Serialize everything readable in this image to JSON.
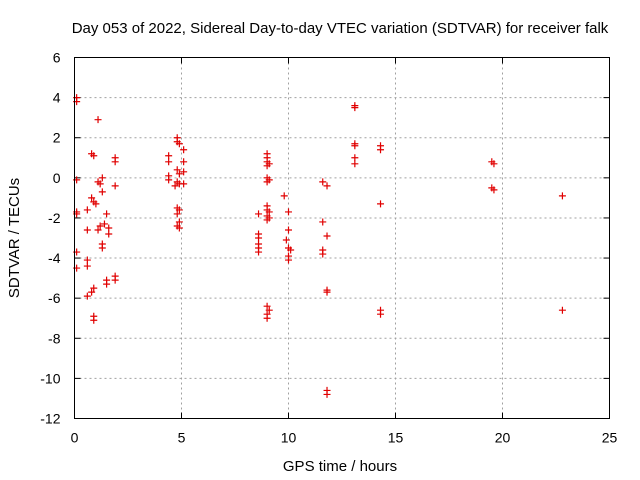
{
  "chart_data": {
    "type": "scatter",
    "title": "Day 053 of 2022, Sidereal Day-to-day VTEC variation (SDTVAR) for receiver falk",
    "xlabel": "GPS time / hours",
    "ylabel": "SDTVAR / TECUs",
    "xlim": [
      0,
      25
    ],
    "ylim": [
      -12,
      6
    ],
    "xticks": [
      "0",
      "5",
      "10",
      "15",
      "20",
      "25"
    ],
    "yticks": [
      "-12",
      "-10",
      "-8",
      "-6",
      "-4",
      "-2",
      "0",
      "2",
      "4",
      "6"
    ],
    "grid": true,
    "marker": "+",
    "color": "#e00000",
    "series": [
      {
        "name": "SDTVAR",
        "points": [
          [
            0.1,
            4.0
          ],
          [
            0.1,
            3.8
          ],
          [
            0.1,
            -0.1
          ],
          [
            0.1,
            -1.7
          ],
          [
            0.1,
            -1.8
          ],
          [
            0.1,
            -3.7
          ],
          [
            0.1,
            -4.5
          ],
          [
            0.6,
            -1.6
          ],
          [
            0.6,
            -2.6
          ],
          [
            0.6,
            -4.1
          ],
          [
            0.6,
            -4.4
          ],
          [
            0.6,
            -5.9
          ],
          [
            0.8,
            -5.7
          ],
          [
            0.8,
            1.2
          ],
          [
            0.9,
            1.1
          ],
          [
            0.8,
            -1.0
          ],
          [
            0.9,
            -1.2
          ],
          [
            1.0,
            -1.3
          ],
          [
            0.9,
            -5.5
          ],
          [
            0.9,
            -6.9
          ],
          [
            0.9,
            -7.1
          ],
          [
            1.1,
            2.9
          ],
          [
            1.1,
            -0.2
          ],
          [
            1.2,
            -0.3
          ],
          [
            1.3,
            0.0
          ],
          [
            1.3,
            -0.7
          ],
          [
            1.2,
            -2.4
          ],
          [
            1.1,
            -2.6
          ],
          [
            1.4,
            -2.3
          ],
          [
            1.3,
            -3.3
          ],
          [
            1.3,
            -3.5
          ],
          [
            1.5,
            -1.8
          ],
          [
            1.6,
            -2.5
          ],
          [
            1.6,
            -2.8
          ],
          [
            1.5,
            -5.1
          ],
          [
            1.5,
            -5.3
          ],
          [
            1.9,
            1.0
          ],
          [
            1.9,
            0.8
          ],
          [
            1.9,
            -0.4
          ],
          [
            1.9,
            -4.9
          ],
          [
            1.9,
            -5.1
          ],
          [
            4.4,
            1.1
          ],
          [
            4.4,
            0.8
          ],
          [
            4.4,
            0.1
          ],
          [
            4.4,
            -0.1
          ],
          [
            4.8,
            2.0
          ],
          [
            4.8,
            1.8
          ],
          [
            4.9,
            1.7
          ],
          [
            4.8,
            0.4
          ],
          [
            4.9,
            0.2
          ],
          [
            4.8,
            -0.2
          ],
          [
            4.9,
            -0.3
          ],
          [
            4.7,
            -0.4
          ],
          [
            4.8,
            -1.5
          ],
          [
            4.9,
            -1.6
          ],
          [
            4.8,
            -1.8
          ],
          [
            4.9,
            -2.2
          ],
          [
            4.8,
            -2.4
          ],
          [
            4.9,
            -2.5
          ],
          [
            5.1,
            1.4
          ],
          [
            5.1,
            0.8
          ],
          [
            5.1,
            0.3
          ],
          [
            5.1,
            -0.3
          ],
          [
            8.6,
            -1.8
          ],
          [
            8.6,
            -2.8
          ],
          [
            8.6,
            -3.0
          ],
          [
            8.6,
            -3.3
          ],
          [
            8.6,
            -3.5
          ],
          [
            8.6,
            -3.7
          ],
          [
            9.0,
            1.2
          ],
          [
            9.0,
            1.0
          ],
          [
            9.0,
            0.8
          ],
          [
            9.0,
            0.6
          ],
          [
            9.1,
            0.7
          ],
          [
            9.0,
            0.0
          ],
          [
            9.1,
            -0.1
          ],
          [
            9.0,
            -0.2
          ],
          [
            9.0,
            -1.4
          ],
          [
            9.0,
            -1.6
          ],
          [
            9.1,
            -1.7
          ],
          [
            9.0,
            -1.9
          ],
          [
            9.1,
            -2.0
          ],
          [
            9.0,
            -2.1
          ],
          [
            9.0,
            -6.4
          ],
          [
            9.1,
            -6.6
          ],
          [
            9.0,
            -6.8
          ],
          [
            9.0,
            -7.0
          ],
          [
            9.8,
            -0.9
          ],
          [
            10.0,
            -1.7
          ],
          [
            10.0,
            -2.6
          ],
          [
            9.9,
            -3.1
          ],
          [
            10.0,
            -3.5
          ],
          [
            10.1,
            -3.6
          ],
          [
            10.0,
            -3.9
          ],
          [
            10.0,
            -4.1
          ],
          [
            11.6,
            -0.2
          ],
          [
            11.8,
            -0.4
          ],
          [
            11.6,
            -2.2
          ],
          [
            11.6,
            -3.6
          ],
          [
            11.6,
            -3.8
          ],
          [
            11.8,
            -2.9
          ],
          [
            11.8,
            -5.6
          ],
          [
            11.8,
            -5.7
          ],
          [
            11.8,
            -10.6
          ],
          [
            11.8,
            -10.8
          ],
          [
            13.1,
            3.6
          ],
          [
            13.1,
            3.5
          ],
          [
            13.1,
            1.7
          ],
          [
            13.1,
            1.6
          ],
          [
            13.1,
            1.0
          ],
          [
            13.1,
            0.7
          ],
          [
            14.3,
            1.6
          ],
          [
            14.3,
            1.4
          ],
          [
            14.3,
            -1.3
          ],
          [
            14.3,
            -6.6
          ],
          [
            14.3,
            -6.8
          ],
          [
            19.5,
            0.8
          ],
          [
            19.6,
            0.7
          ],
          [
            19.5,
            -0.5
          ],
          [
            19.6,
            -0.6
          ],
          [
            22.8,
            -0.9
          ],
          [
            22.8,
            -6.6
          ]
        ]
      }
    ]
  }
}
